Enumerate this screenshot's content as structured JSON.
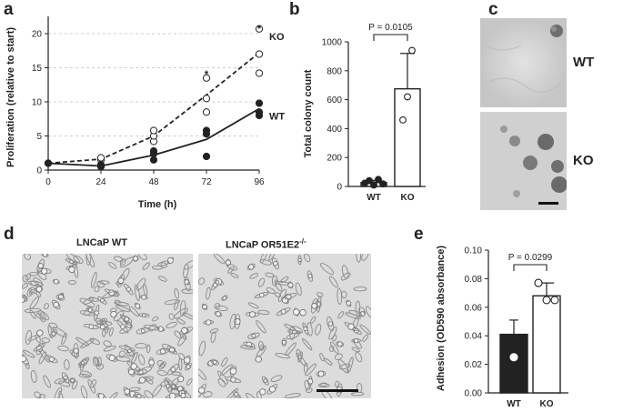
{
  "panels": {
    "a": "a",
    "b": "b",
    "c": "c",
    "d": "d",
    "e": "e"
  },
  "chart_data": [
    {
      "panel": "a",
      "type": "line",
      "xlabel": "Time (h)",
      "ylabel": "Proliferation (relative to start)",
      "x": [
        0,
        24,
        48,
        72,
        96
      ],
      "xticks": [
        "0",
        "24",
        "48",
        "72",
        "96"
      ],
      "yticks": [
        "0",
        "5",
        "10",
        "15",
        "20"
      ],
      "xlim": [
        0,
        96
      ],
      "ylim": [
        0,
        22
      ],
      "grid": true,
      "series": [
        {
          "name": "KO",
          "style": "dashed",
          "marker": "open",
          "mean": [
            1,
            1.6,
            5.0,
            11.0,
            17.2
          ],
          "points": [
            [
              0,
              1
            ],
            [
              24,
              1.5
            ],
            [
              24,
              1.8
            ],
            [
              48,
              4.2
            ],
            [
              48,
              5.0
            ],
            [
              48,
              5.8
            ],
            [
              72,
              8.5
            ],
            [
              72,
              10.5
            ],
            [
              72,
              13.5
            ],
            [
              96,
              14.2
            ],
            [
              96,
              17.0
            ],
            [
              96,
              20.7
            ]
          ]
        },
        {
          "name": "WT",
          "style": "solid",
          "marker": "filled",
          "mean": [
            1,
            0.6,
            2.2,
            4.5,
            9.0
          ],
          "points": [
            [
              0,
              1
            ],
            [
              24,
              0.5
            ],
            [
              24,
              0.8
            ],
            [
              48,
              1.5
            ],
            [
              48,
              2.4
            ],
            [
              48,
              2.8
            ],
            [
              72,
              2.0
            ],
            [
              72,
              5.3
            ],
            [
              72,
              5.8
            ],
            [
              96,
              8.0
            ],
            [
              96,
              8.5
            ],
            [
              96,
              9.8
            ]
          ]
        }
      ],
      "annotations": [
        {
          "x": 72,
          "text": "*"
        },
        {
          "x": 96,
          "text": "*"
        }
      ]
    },
    {
      "panel": "b",
      "type": "bar",
      "ylabel": "Total colony count",
      "categories": [
        "WT",
        "KO"
      ],
      "values": [
        27,
        675
      ],
      "errors": [
        15,
        245
      ],
      "ylim": [
        0,
        1000
      ],
      "yticks": [
        "0",
        "200",
        "400",
        "600",
        "800",
        "1000"
      ],
      "points": [
        [
          22,
          40,
          10,
          48,
          18
        ],
        [
          460,
          620,
          940
        ]
      ],
      "bar_fill": [
        "#ffffff",
        "#ffffff"
      ],
      "significance": "P = 0.0105"
    },
    {
      "panel": "e",
      "type": "bar",
      "ylabel": "Adhesion (OD590 absorbance)",
      "categories": [
        "WT",
        "KO"
      ],
      "values": [
        0.041,
        0.068
      ],
      "errors": [
        0.01,
        0.009
      ],
      "ylim": [
        0,
        0.1
      ],
      "yticks": [
        "0.00",
        "0.02",
        "0.04",
        "0.06",
        "0.08",
        "0.10"
      ],
      "points": [
        [
          0.05,
          0.025,
          0.05
        ],
        [
          0.077,
          0.065,
          0.065
        ]
      ],
      "bar_fill": [
        "#222222",
        "#ffffff"
      ],
      "significance": "P = 0.0299"
    }
  ],
  "micrographs": {
    "c_top_label": "WT",
    "c_bottom_label": "KO",
    "d_left_caption": "LNCaP WT",
    "d_right_caption": "LNCaP OR51E2",
    "d_right_superscript": "-/-"
  }
}
